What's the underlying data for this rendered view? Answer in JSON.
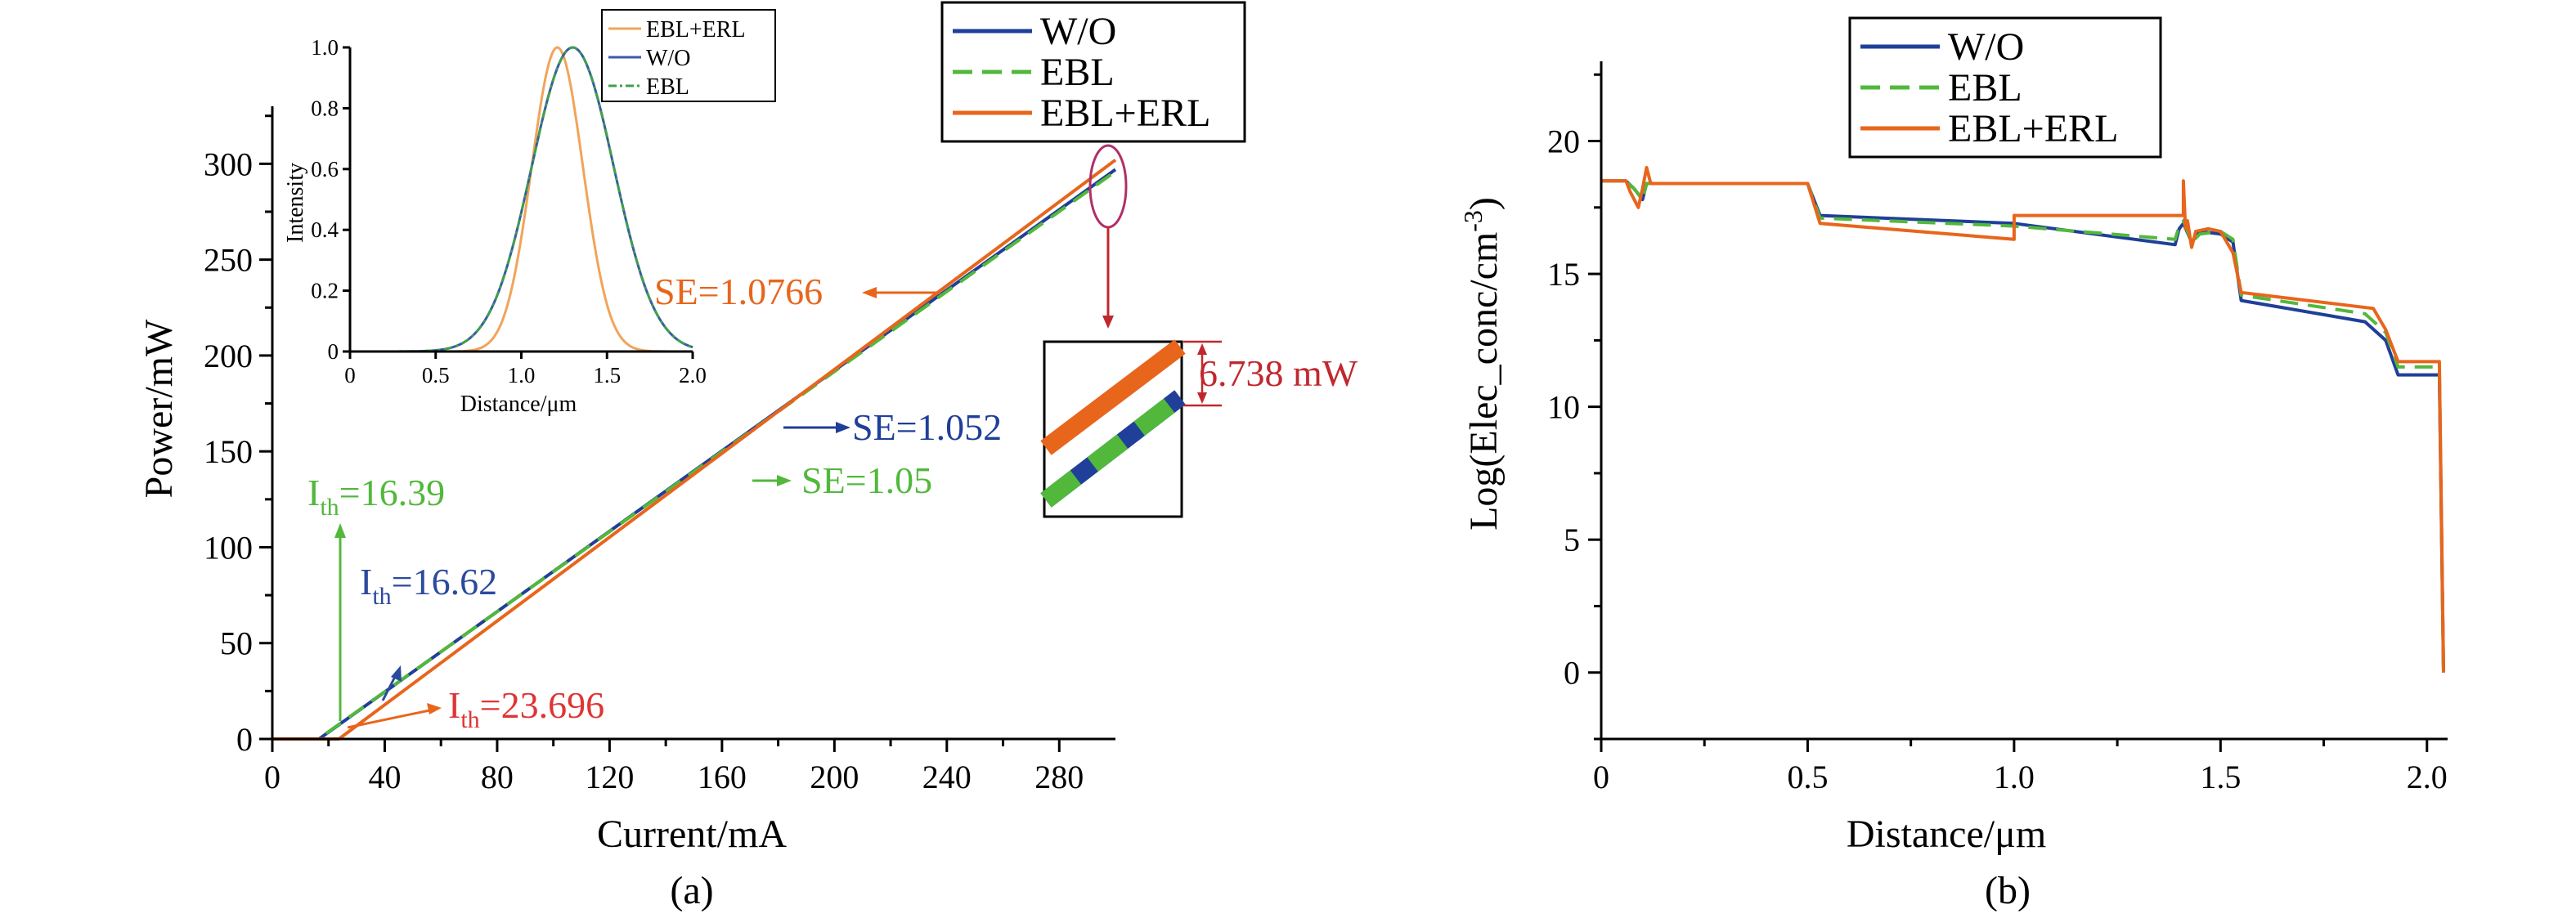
{
  "colors": {
    "wo": "#1f3f99",
    "ebl": "#52b83c",
    "ebl_erl": "#e8651c",
    "ebl_erl_inset": "#f1a45a",
    "inset_ebl": "#3fa04a",
    "inset_wo": "#3a5aa8",
    "ith_ebl": "#52b83c",
    "ith_wo": "#2b4a9e",
    "ith_erl": "#e03434",
    "magnify_ring": "#b0306a",
    "magnify_arrow": "#c0282d",
    "delta": "#c0282d"
  },
  "chart_data": [
    {
      "id": "a",
      "type": "line",
      "caption": "(a)",
      "xlabel": "Current/mA",
      "ylabel": "Power/mW",
      "xlim": [
        0,
        300
      ],
      "ylim": [
        0,
        330
      ],
      "xticks": [
        0,
        40,
        80,
        120,
        160,
        200,
        240,
        280
      ],
      "yticks": [
        0,
        50,
        100,
        150,
        200,
        250,
        300
      ],
      "series": [
        {
          "name": "W/O",
          "color_key": "wo",
          "style": "solid",
          "x": [
            0,
            16.62,
            300
          ],
          "y": [
            0,
            0,
            297
          ]
        },
        {
          "name": "EBL",
          "color_key": "ebl",
          "style": "dashed",
          "x": [
            0,
            16.39,
            300
          ],
          "y": [
            0,
            0,
            296
          ]
        },
        {
          "name": "EBL+ERL",
          "color_key": "ebl_erl",
          "style": "solid",
          "x": [
            0,
            23.696,
            300
          ],
          "y": [
            0,
            0,
            302
          ]
        }
      ],
      "legend": {
        "position": "top-right",
        "entries": [
          "W/O",
          "EBL",
          "EBL+ERL"
        ]
      },
      "annotations": [
        {
          "id": "se_erl",
          "label": "SE=1.0766",
          "color_key": "ebl_erl"
        },
        {
          "id": "se_wo",
          "label": "SE=1.052",
          "color_key": "wo"
        },
        {
          "id": "se_ebl",
          "label": "SE=1.05",
          "color_key": "ebl"
        },
        {
          "id": "ith_ebl",
          "main": "I",
          "sub": "th",
          "value": "=16.39",
          "color_key": "ith_ebl"
        },
        {
          "id": "ith_wo",
          "main": "I",
          "sub": "th",
          "value": "=16.62",
          "color_key": "ith_wo"
        },
        {
          "id": "ith_erl",
          "main": "I",
          "sub": "th",
          "value": "=23.696",
          "color_key": "ith_erl"
        },
        {
          "id": "delta",
          "label": "6.738 mW",
          "color_key": "delta"
        }
      ],
      "inset": {
        "type": "line",
        "xlabel": "Distance/μm",
        "ylabel": "Intensity",
        "xlim": [
          0,
          2.0
        ],
        "ylim": [
          0,
          1.0
        ],
        "xticks": [
          "0",
          "0.5",
          "1.0",
          "1.5",
          "2.0"
        ],
        "xtick_values": [
          0,
          0.5,
          1.0,
          1.5,
          2.0
        ],
        "yticks": [
          "0",
          "0.2",
          "0.4",
          "0.6",
          "0.8",
          "1.0"
        ],
        "ytick_values": [
          0,
          0.2,
          0.4,
          0.6,
          0.8,
          1.0
        ],
        "series": [
          {
            "name": "EBL+ERL",
            "color_key": "ebl_erl_inset",
            "style": "solid",
            "center": 1.21,
            "width": 0.15
          },
          {
            "name": "W/O",
            "color_key": "inset_wo",
            "style": "solid",
            "center": 1.3,
            "width": 0.24
          },
          {
            "name": "EBL",
            "color_key": "inset_ebl",
            "style": "dashdot",
            "center": 1.3,
            "width": 0.24
          }
        ],
        "legend": {
          "position": "top-right",
          "entries": [
            "EBL+ERL",
            "W/O",
            "EBL"
          ]
        }
      }
    },
    {
      "id": "b",
      "type": "line",
      "caption": "(b)",
      "xlabel": "Distance/μm",
      "ylabel": "Log(Elec_conc/cm",
      "ylabel_sup": "-3",
      "ylabel_end": ")",
      "xlim": [
        0,
        2.05
      ],
      "ylim": [
        -2.5,
        23
      ],
      "xticks": [
        "0",
        "0.5",
        "1.0",
        "1.5",
        "2.0"
      ],
      "xtick_values": [
        0,
        0.5,
        1.0,
        1.5,
        2.0
      ],
      "yticks": [
        "0",
        "5",
        "10",
        "15",
        "20"
      ],
      "ytick_values": [
        0,
        5,
        10,
        15,
        20
      ],
      "series": [
        {
          "name": "W/O",
          "color_key": "wo",
          "style": "solid",
          "x": [
            0,
            0.06,
            0.08,
            0.1,
            0.11,
            0.12,
            0.5,
            0.53,
            1.0,
            1.39,
            1.4,
            1.41,
            1.43,
            1.45,
            1.5,
            1.53,
            1.55,
            1.85,
            1.9,
            1.93,
            2.03,
            2.04
          ],
          "y": [
            18.5,
            18.5,
            18.2,
            17.8,
            18.4,
            18.4,
            18.4,
            17.2,
            16.9,
            16.1,
            16.7,
            16.9,
            16.2,
            16.6,
            16.5,
            16.2,
            14.0,
            13.2,
            12.5,
            11.2,
            11.2,
            0
          ]
        },
        {
          "name": "EBL",
          "color_key": "ebl",
          "style": "dashed",
          "x": [
            0,
            0.06,
            0.08,
            0.1,
            0.11,
            0.12,
            0.5,
            0.53,
            1.0,
            1.39,
            1.4,
            1.41,
            1.43,
            1.45,
            1.5,
            1.53,
            1.55,
            1.85,
            1.9,
            1.93,
            2.03,
            2.04
          ],
          "y": [
            18.5,
            18.5,
            18.2,
            17.8,
            18.4,
            18.4,
            18.4,
            17.1,
            16.8,
            16.3,
            16.8,
            17.0,
            16.2,
            16.5,
            16.6,
            16.3,
            14.2,
            13.5,
            12.8,
            11.5,
            11.5,
            0
          ]
        },
        {
          "name": "EBL+ERL",
          "color_key": "ebl_erl",
          "style": "solid",
          "x": [
            0,
            0.06,
            0.07,
            0.09,
            0.1,
            0.11,
            0.12,
            0.5,
            0.53,
            1.0,
            1.0,
            1.41,
            1.41,
            1.415,
            1.42,
            1.43,
            1.44,
            1.47,
            1.5,
            1.53,
            1.55,
            1.87,
            1.9,
            1.93,
            2.03,
            2.04
          ],
          "y": [
            18.5,
            18.5,
            18.1,
            17.5,
            18.2,
            19.0,
            18.4,
            18.4,
            16.9,
            16.3,
            17.2,
            17.2,
            18.5,
            16.7,
            17.0,
            16.0,
            16.6,
            16.7,
            16.6,
            15.8,
            14.3,
            13.7,
            12.9,
            11.7,
            11.7,
            0
          ]
        }
      ],
      "legend": {
        "position": "top-left",
        "entries": [
          "W/O",
          "EBL",
          "EBL+ERL"
        ]
      }
    }
  ]
}
